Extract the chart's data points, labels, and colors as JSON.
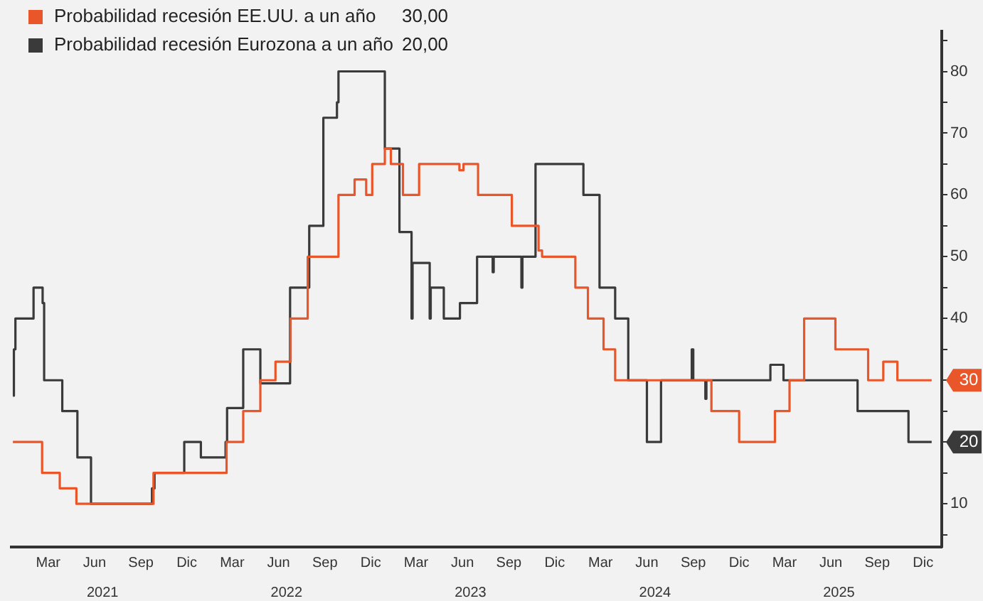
{
  "chart_data": {
    "type": "step",
    "xlim": [
      "2021-01-01",
      "2026-01-21"
    ],
    "xticks": [
      {
        "value": "2021-03-15",
        "label": "Mar"
      },
      {
        "value": "2021-06-15",
        "label": "Jun"
      },
      {
        "value": "2021-09-15",
        "label": "Sep"
      },
      {
        "value": "2021-12-15",
        "label": "Dic"
      },
      {
        "value": "2022-03-15",
        "label": "Mar"
      },
      {
        "value": "2022-06-15",
        "label": "Jun"
      },
      {
        "value": "2022-09-15",
        "label": "Sep"
      },
      {
        "value": "2022-12-15",
        "label": "Dic"
      },
      {
        "value": "2023-03-15",
        "label": "Mar"
      },
      {
        "value": "2023-06-15",
        "label": "Jun"
      },
      {
        "value": "2023-09-15",
        "label": "Sep"
      },
      {
        "value": "2023-12-15",
        "label": "Dic"
      },
      {
        "value": "2024-03-15",
        "label": "Mar"
      },
      {
        "value": "2024-06-15",
        "label": "Jun"
      },
      {
        "value": "2024-09-15",
        "label": "Sep"
      },
      {
        "value": "2024-12-15",
        "label": "Dic"
      },
      {
        "value": "2025-03-15",
        "label": "Mar"
      },
      {
        "value": "2025-06-15",
        "label": "Jun"
      },
      {
        "value": "2025-09-15",
        "label": "Sep"
      },
      {
        "value": "2025-12-15",
        "label": "Dic"
      }
    ],
    "x2lim": [
      "2021-01-01",
      "2026-01-21"
    ],
    "x2ticks": [
      {
        "value": "2021-07-01",
        "label": "2021"
      },
      {
        "value": "2022-07-01",
        "label": "2022"
      },
      {
        "value": "2023-07-01",
        "label": "2023"
      },
      {
        "value": "2024-07-01",
        "label": "2024"
      },
      {
        "value": "2025-07-01",
        "label": "2025"
      }
    ],
    "ylim": [
      3,
      86.5
    ],
    "yticks": [
      {
        "value": 5,
        "label": null
      },
      10,
      {
        "value": 15,
        "label": null
      },
      {
        "value": 20,
        "label": null
      },
      {
        "value": 25,
        "label": null
      },
      {
        "value": 30,
        "label": null
      },
      {
        "value": 35,
        "label": null
      },
      40,
      {
        "value": 45,
        "label": null
      },
      50,
      {
        "value": 55,
        "label": null
      },
      60,
      {
        "value": 65,
        "label": null
      },
      70,
      {
        "value": 75,
        "label": null
      },
      80,
      {
        "value": 85,
        "label": null
      }
    ],
    "legend": "top left",
    "grid": false,
    "annotations": [
      "30,00",
      "20,00",
      {
        "text": "30",
        "x": "2026-01-01",
        "y": 30
      },
      {
        "text": "20",
        "x": "2026-01-01",
        "y": 20
      }
    ],
    "series": [
      {
        "name": "Probabilidad recesión EE.UU. a un año",
        "color": "#e8562a",
        "x": [
          "2021-01-04",
          "2021-03-03",
          "2021-04-07",
          "2021-05-10",
          "2021-10-10",
          "2022-03-04",
          "2022-04-06",
          "2022-05-10",
          "2022-06-09",
          "2022-07-09",
          "2022-08-12",
          "2022-10-12",
          "2022-11-13",
          "2022-12-06",
          "2022-12-18",
          "2023-01-12",
          "2023-01-24",
          "2023-02-17",
          "2023-03-21",
          "2023-06-09",
          "2023-06-17",
          "2023-07-16",
          "2023-09-21",
          "2023-11-13",
          "2023-11-20",
          "2024-01-25",
          "2024-02-19",
          "2024-03-21",
          "2024-04-13",
          "2024-10-21",
          "2024-12-15",
          "2025-02-24",
          "2025-03-25",
          "2025-04-23",
          "2025-06-24",
          "2025-08-28",
          "2025-09-27",
          "2025-10-25",
          "2026-01-01"
        ],
        "values": [
          20,
          15,
          12.5,
          10,
          15,
          20,
          25,
          30,
          33,
          40,
          50,
          60,
          62.5,
          60,
          65,
          67.5,
          65,
          60,
          65,
          64,
          65,
          60,
          55,
          51,
          50,
          45,
          40,
          35,
          30,
          25,
          20,
          25,
          30,
          40,
          35,
          30,
          33,
          30,
          30
        ]
      },
      {
        "name": "Probabilidad recesión Eurozona a un año",
        "color": "#3a3a3a",
        "x": [
          "2021-01-04",
          "2021-01-06",
          "2021-01-09",
          "2021-02-14",
          "2021-03-04",
          "2021-03-07",
          "2021-04-12",
          "2021-05-12",
          "2021-06-08",
          "2021-10-07",
          "2021-10-12",
          "2021-12-10",
          "2022-01-12",
          "2022-03-02",
          "2022-03-05",
          "2022-04-06",
          "2022-05-10",
          "2022-07-08",
          "2022-08-15",
          "2022-09-12",
          "2022-10-09",
          "2022-10-12",
          "2023-01-12",
          "2023-02-10",
          "2023-03-06",
          "2023-03-08",
          "2023-04-11",
          "2023-04-13",
          "2023-05-09",
          "2023-06-10",
          "2023-07-14",
          "2023-08-14",
          "2023-08-16",
          "2023-10-10",
          "2023-10-12",
          "2023-11-07",
          "2024-02-10",
          "2024-03-13",
          "2024-04-13",
          "2024-05-09",
          "2024-06-15",
          "2024-07-13",
          "2024-09-12",
          "2024-09-15",
          "2024-10-09",
          "2024-10-11",
          "2025-02-15",
          "2025-03-13",
          "2025-08-07",
          "2025-11-16",
          "2026-01-01"
        ],
        "values": [
          27.5,
          35,
          40,
          45,
          42.5,
          30,
          25,
          17.5,
          10,
          12.5,
          15,
          20,
          17.5,
          20,
          25.5,
          35,
          29.5,
          45,
          55,
          72.5,
          75,
          80,
          67.5,
          54,
          40,
          49,
          40,
          45,
          40,
          42.5,
          50,
          47.5,
          50,
          45,
          50,
          65,
          60,
          45,
          40,
          30,
          20,
          30,
          35,
          30,
          27,
          30,
          32.5,
          30,
          25,
          20,
          20
        ]
      }
    ]
  }
}
